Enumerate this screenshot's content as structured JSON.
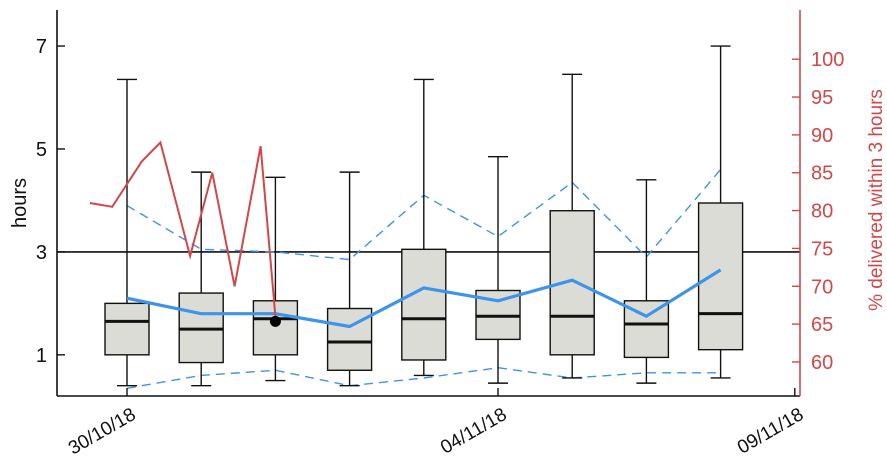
{
  "chart_data": {
    "type": "box",
    "x_tick_labels": [
      "30/10/18",
      "04/11/18",
      "09/11/18"
    ],
    "x_tick_positions": [
      1,
      6,
      10
    ],
    "ylabel_left": "hours",
    "ylabel_right": "% delivered within 3 hours",
    "y_left_ticks": [
      1,
      3,
      5,
      7
    ],
    "y_left_lim": [
      0.2,
      7.7
    ],
    "y_right_ticks": [
      60,
      65,
      70,
      75,
      80,
      85,
      90,
      95,
      100
    ],
    "y_right_lim": [
      55.5,
      106.5
    ],
    "reference_line": 3,
    "boxes": [
      {
        "day": 1,
        "whisker_low": 0.4,
        "q1": 1.0,
        "median": 1.65,
        "q3": 2.0,
        "whisker_high": 6.35
      },
      {
        "day": 2,
        "whisker_low": 0.4,
        "q1": 0.85,
        "median": 1.5,
        "q3": 2.2,
        "whisker_high": 4.55
      },
      {
        "day": 3,
        "whisker_low": 0.5,
        "q1": 1.0,
        "median": 1.7,
        "q3": 2.05,
        "whisker_high": 4.45
      },
      {
        "day": 4,
        "whisker_low": 0.4,
        "q1": 0.7,
        "median": 1.25,
        "q3": 1.9,
        "whisker_high": 4.55
      },
      {
        "day": 5,
        "whisker_low": 0.6,
        "q1": 0.9,
        "median": 1.7,
        "q3": 3.05,
        "whisker_high": 6.35
      },
      {
        "day": 6,
        "whisker_low": 0.45,
        "q1": 1.3,
        "median": 1.75,
        "q3": 2.25,
        "whisker_high": 4.85
      },
      {
        "day": 7,
        "whisker_low": 0.55,
        "q1": 1.0,
        "median": 1.75,
        "q3": 3.8,
        "whisker_high": 6.45
      },
      {
        "day": 8,
        "whisker_low": 0.45,
        "q1": 0.95,
        "median": 1.6,
        "q3": 2.05,
        "whisker_high": 4.4
      },
      {
        "day": 9,
        "whisker_low": 0.55,
        "q1": 1.1,
        "median": 1.8,
        "q3": 3.95,
        "whisker_high": 7.0
      }
    ],
    "outlier": {
      "day": 3,
      "value": 1.65
    },
    "mean_line": {
      "days": [
        1,
        2,
        3,
        4,
        5,
        6,
        7,
        8,
        9
      ],
      "values": [
        2.1,
        1.8,
        1.8,
        1.55,
        2.3,
        2.05,
        2.45,
        1.75,
        2.65
      ]
    },
    "upper_band": {
      "days": [
        1,
        2,
        3,
        4,
        5,
        6,
        7,
        8,
        9
      ],
      "values": [
        3.9,
        3.05,
        3.0,
        2.85,
        4.1,
        3.3,
        4.35,
        2.9,
        4.6
      ]
    },
    "lower_band": {
      "days": [
        1,
        2,
        3,
        4,
        5,
        6,
        7,
        8,
        9
      ],
      "values": [
        0.35,
        0.6,
        0.7,
        0.4,
        0.55,
        0.75,
        0.55,
        0.65,
        0.65
      ]
    },
    "pct_within_3h": {
      "days": [
        0.5,
        0.8,
        1.2,
        1.45,
        1.85,
        2.15,
        2.45,
        2.8,
        3.0
      ],
      "values": [
        81.0,
        80.5,
        86.5,
        89.0,
        74.0,
        85.0,
        70.0,
        88.5,
        66.0
      ]
    },
    "colors": {
      "box_fill": "#dcdcd7",
      "box_stroke": "#111111",
      "mean_line": "#3d94e8",
      "band_line": "#3d94e8",
      "pct_line": "#d04848",
      "right_axis": "#d04848",
      "outlier": "#000000"
    }
  }
}
